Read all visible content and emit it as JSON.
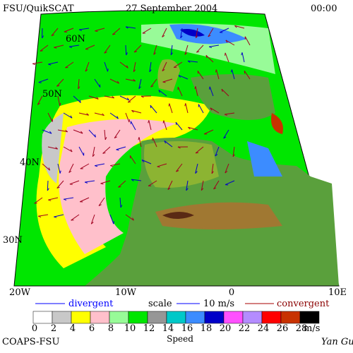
{
  "header": {
    "source": "FSU/QuikSCAT",
    "date": "27 September 2004",
    "time": "00:00"
  },
  "latitude_labels": [
    "60N",
    "50N",
    "40N",
    "30N"
  ],
  "longitude_labels": [
    "20W",
    "10W",
    "0",
    "10E"
  ],
  "legend": {
    "divergent": "divergent",
    "scale": "scale",
    "scale_value": "10 m/s",
    "convergent": "convergent"
  },
  "colorbar": {
    "title": "Speed",
    "unit": "m/s",
    "ticks": [
      0,
      2,
      4,
      6,
      8,
      10,
      12,
      14,
      16,
      18,
      20,
      22,
      24,
      26,
      28
    ],
    "colors": [
      "#ffffff",
      "#c8c8c8",
      "#ffff00",
      "#ffc0cb",
      "#98fb98",
      "#00e600",
      "#969696",
      "#00c8c8",
      "#3c8cff",
      "#0000c8",
      "#ff50ff",
      "#b48cff",
      "#ff0000",
      "#c83200",
      "#000000"
    ]
  },
  "footer": {
    "institution": "COAPS-FSU",
    "author": "Yan Gu"
  }
}
